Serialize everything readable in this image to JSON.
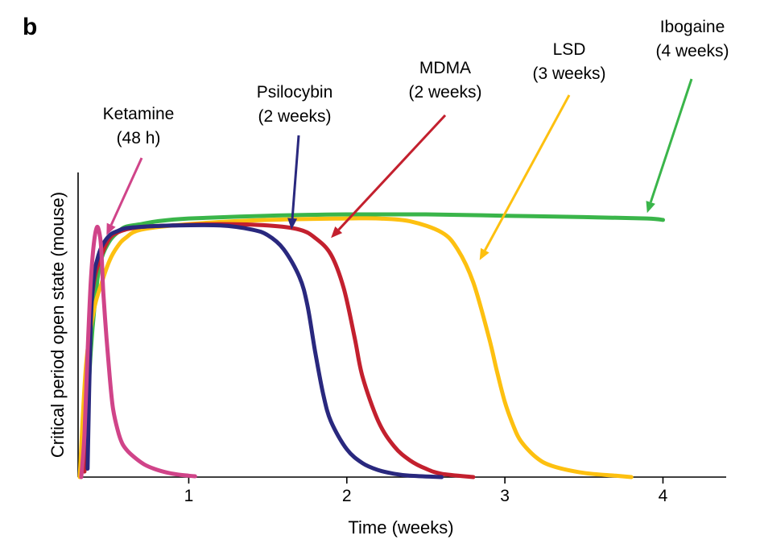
{
  "panel_label": "b",
  "chart_data": {
    "type": "line",
    "title": "",
    "xlabel": "Time (weeks)",
    "ylabel": "Critical period open state (mouse)",
    "xlim": [
      -0.7,
      3.4
    ],
    "ylim": [
      0,
      1
    ],
    "x_ticks": [
      {
        "value": 0.0,
        "label": "1"
      },
      {
        "value": 1.0,
        "label": "2"
      },
      {
        "value": 2.0,
        "label": "3"
      },
      {
        "value": 3.0,
        "label": "4"
      }
    ],
    "grid": false,
    "series": [
      {
        "name": "Ibogaine",
        "duration": "4 weeks",
        "color": "#3ab54a",
        "x": [
          -0.66,
          -0.62,
          -0.58,
          -0.55,
          -0.5,
          -0.45,
          -0.4,
          -0.3,
          -0.2,
          0.0,
          0.5,
          1.0,
          1.5,
          2.0,
          2.5,
          2.9,
          3.0
        ],
        "y": [
          0.02,
          0.45,
          0.7,
          0.79,
          0.85,
          0.88,
          0.9,
          0.91,
          0.92,
          0.93,
          0.94,
          0.945,
          0.945,
          0.94,
          0.935,
          0.93,
          0.925
        ]
      },
      {
        "name": "LSD",
        "duration": "3 weeks",
        "color": "#fdc010",
        "x": [
          -0.69,
          -0.65,
          -0.6,
          -0.55,
          -0.5,
          -0.45,
          -0.4,
          -0.3,
          0.0,
          0.5,
          1.0,
          1.2,
          1.4,
          1.6,
          1.7,
          1.8,
          1.9,
          1.95,
          2.0,
          2.05,
          2.1,
          2.2,
          2.3,
          2.5,
          2.7,
          2.8
        ],
        "y": [
          0.0,
          0.4,
          0.6,
          0.7,
          0.78,
          0.83,
          0.86,
          0.89,
          0.91,
          0.925,
          0.93,
          0.93,
          0.92,
          0.88,
          0.82,
          0.7,
          0.5,
          0.38,
          0.27,
          0.19,
          0.13,
          0.07,
          0.04,
          0.015,
          0.005,
          0.0
        ]
      },
      {
        "name": "MDMA",
        "duration": "2 weeks",
        "color": "#c3202e",
        "x": [
          -0.66,
          -0.63,
          -0.6,
          -0.55,
          -0.5,
          -0.45,
          -0.4,
          -0.3,
          -0.1,
          0.2,
          0.5,
          0.7,
          0.8,
          0.9,
          0.98,
          1.05,
          1.1,
          1.2,
          1.3,
          1.4,
          1.5,
          1.6,
          1.8
        ],
        "y": [
          0.02,
          0.5,
          0.7,
          0.8,
          0.86,
          0.88,
          0.89,
          0.9,
          0.905,
          0.91,
          0.905,
          0.89,
          0.86,
          0.8,
          0.68,
          0.5,
          0.36,
          0.2,
          0.11,
          0.06,
          0.03,
          0.012,
          0.0
        ]
      },
      {
        "name": "Psilocybin",
        "duration": "2 weeks",
        "color": "#29287e",
        "x": [
          -0.64,
          -0.62,
          -0.6,
          -0.58,
          -0.55,
          -0.5,
          -0.45,
          -0.4,
          -0.3,
          -0.1,
          0.2,
          0.4,
          0.5,
          0.6,
          0.7,
          0.75,
          0.8,
          0.85,
          0.9,
          1.0,
          1.1,
          1.2,
          1.3,
          1.4,
          1.6
        ],
        "y": [
          0.03,
          0.55,
          0.72,
          0.78,
          0.83,
          0.87,
          0.885,
          0.895,
          0.9,
          0.905,
          0.905,
          0.89,
          0.87,
          0.82,
          0.72,
          0.62,
          0.45,
          0.3,
          0.2,
          0.1,
          0.05,
          0.025,
          0.012,
          0.005,
          0.0
        ]
      },
      {
        "name": "Ketamine",
        "duration": "48 h",
        "color": "#d04489",
        "x": [
          -0.68,
          -0.66,
          -0.64,
          -0.62,
          -0.6,
          -0.58,
          -0.56,
          -0.55,
          -0.54,
          -0.52,
          -0.5,
          -0.48,
          -0.45,
          -0.42,
          -0.38,
          -0.33,
          -0.28,
          -0.22,
          -0.15,
          -0.08,
          0.0,
          0.04
        ],
        "y": [
          0.0,
          0.15,
          0.45,
          0.7,
          0.84,
          0.9,
          0.86,
          0.78,
          0.66,
          0.5,
          0.36,
          0.25,
          0.17,
          0.12,
          0.09,
          0.065,
          0.045,
          0.03,
          0.018,
          0.01,
          0.005,
          0.003
        ]
      }
    ],
    "annotations": [
      {
        "series": "Ketamine",
        "lines": [
          "Ketamine",
          "(48 h)"
        ],
        "point_x": -0.52,
        "point_y": 0.87
      },
      {
        "series": "Psilocybin",
        "lines": [
          "Psilocybin",
          "(2 weeks)"
        ],
        "point_x": 0.65,
        "point_y": 0.89
      },
      {
        "series": "MDMA",
        "lines": [
          "MDMA",
          "(2 weeks)"
        ],
        "point_x": 0.9,
        "point_y": 0.86
      },
      {
        "series": "LSD",
        "lines": [
          "LSD",
          "(3 weeks)"
        ],
        "point_x": 1.84,
        "point_y": 0.78
      },
      {
        "series": "Ibogaine",
        "lines": [
          "Ibogaine",
          "(4 weeks)"
        ],
        "point_x": 2.9,
        "point_y": 0.95
      }
    ]
  }
}
